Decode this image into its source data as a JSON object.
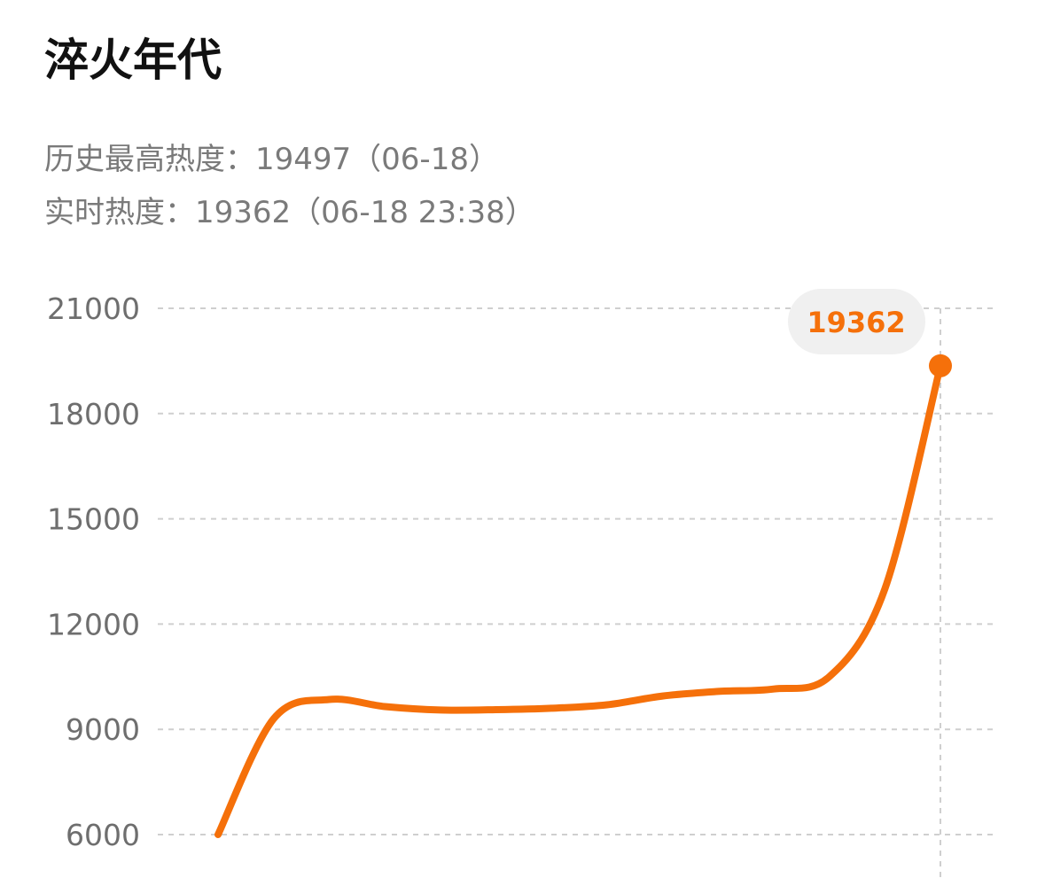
{
  "header": {
    "title": "淬火年代",
    "peak_label": "历史最高热度：",
    "peak_value": "19497",
    "peak_date": "（06-18）",
    "current_label": "实时热度：",
    "current_value": "19362",
    "current_time": "（06-18 23:38）"
  },
  "colors": {
    "accent": "#f5700a",
    "grid": "#cfcfcf",
    "tick": "#6e6e6e",
    "bubble_bg": "#f0f0f0"
  },
  "chart_data": {
    "type": "line",
    "y_ticks": [
      "21000",
      "18000",
      "15000",
      "12000",
      "9000",
      "6000"
    ],
    "ylim": [
      6000,
      21000
    ],
    "grid": true,
    "series": [
      {
        "values": [
          6000,
          9300,
          9850,
          9650,
          9550,
          9560,
          9600,
          9700,
          9950,
          10080,
          10150,
          10500,
          13000,
          19362
        ]
      }
    ],
    "highlight": {
      "value": 19362,
      "label": "19362"
    }
  }
}
